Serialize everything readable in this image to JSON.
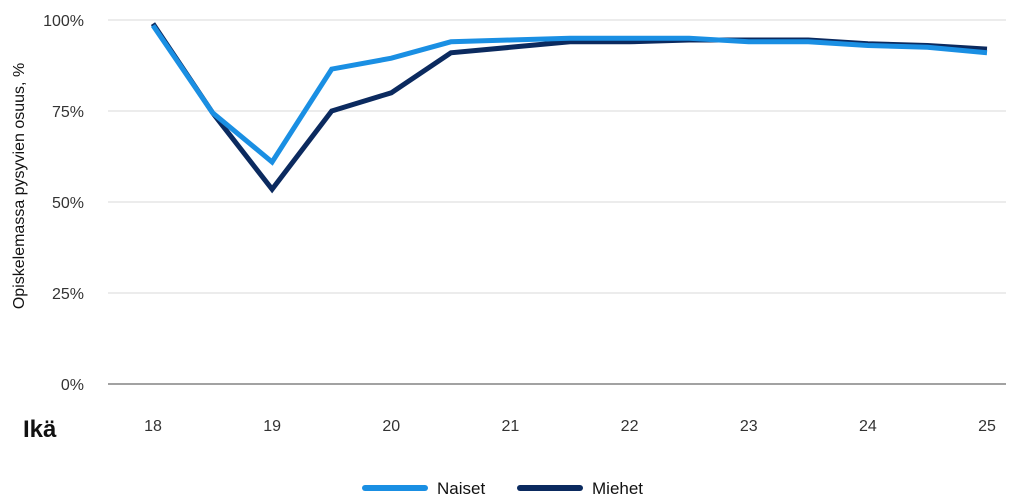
{
  "chart_data": {
    "type": "line",
    "ylabel": "Opiskelemassa pysyvien osuus, %",
    "xlabel": "Ikä",
    "yticks": [
      "0%",
      "25%",
      "50%",
      "75%",
      "100%"
    ],
    "ylim": [
      0,
      100
    ],
    "x_tick_labels": [
      "18",
      "19",
      "20",
      "21",
      "22",
      "23",
      "24",
      "25"
    ],
    "x": [
      18,
      18.5,
      19,
      19.5,
      20,
      20.5,
      21,
      21.5,
      22,
      22.5,
      23,
      23.5,
      24,
      24.5,
      25
    ],
    "grid": true,
    "legend_position": "bottom",
    "series": [
      {
        "name": "Naiset",
        "color": "#1a8fe3",
        "values": [
          98.5,
          74.5,
          61,
          86.5,
          89.5,
          94,
          94.5,
          95,
          95,
          95,
          94,
          94,
          93,
          92.5,
          91
        ]
      },
      {
        "name": "Miehet",
        "color": "#0b2a5f",
        "values": [
          99,
          74.5,
          53.5,
          75,
          80,
          91,
          92.5,
          94,
          94,
          94.5,
          94.5,
          94.5,
          93.5,
          93,
          92
        ]
      }
    ]
  }
}
